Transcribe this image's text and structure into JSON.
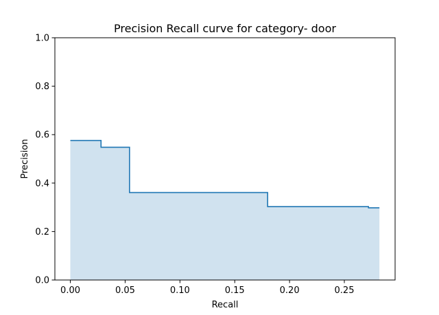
{
  "chart_data": {
    "type": "area",
    "title": "Precision Recall curve for category- door",
    "xlabel": "Recall",
    "ylabel": "Precision",
    "xlim": [
      -0.0141,
      0.2963
    ],
    "ylim": [
      0.0,
      1.0
    ],
    "x_ticks": [
      {
        "value": 0.0,
        "label": "0.00"
      },
      {
        "value": 0.05,
        "label": "0.05"
      },
      {
        "value": 0.1,
        "label": "0.10"
      },
      {
        "value": 0.15,
        "label": "0.15"
      },
      {
        "value": 0.2,
        "label": "0.20"
      },
      {
        "value": 0.25,
        "label": "0.25"
      }
    ],
    "y_ticks": [
      {
        "value": 0.0,
        "label": "0.0"
      },
      {
        "value": 0.2,
        "label": "0.2"
      },
      {
        "value": 0.4,
        "label": "0.4"
      },
      {
        "value": 0.6,
        "label": "0.6"
      },
      {
        "value": 0.8,
        "label": "0.8"
      },
      {
        "value": 1.0,
        "label": "1.0"
      }
    ],
    "grid": false,
    "legend": "none",
    "step": "post",
    "series": [
      {
        "recall": [
          0.0,
          0.028,
          0.028,
          0.054,
          0.054,
          0.18,
          0.18,
          0.272,
          0.272,
          0.282
        ],
        "precision": [
          0.576,
          0.576,
          0.548,
          0.548,
          0.361,
          0.361,
          0.303,
          0.303,
          0.298,
          0.298
        ],
        "line_color": "#1f77b4",
        "fill_color": "#d0e2ef"
      }
    ]
  }
}
